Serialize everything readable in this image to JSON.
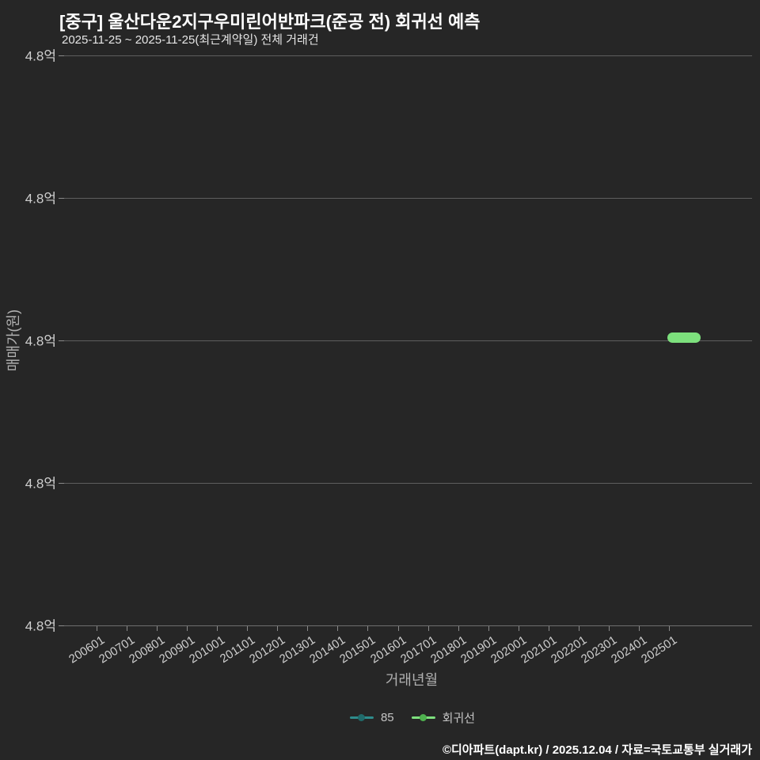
{
  "header": {
    "title": "[중구] 울산다운2지구우미린어반파크(준공 전) 회귀선 예측",
    "subtitle": "2025-11-25 ~ 2025-11-25(최근계약일) 전체 거래건"
  },
  "footer": {
    "credit": "©디아파트(dapt.kr) / 2025.12.04 / 자료=국토교통부 실거래가"
  },
  "colors": {
    "background": "#262626",
    "grid": "#5e5e5e",
    "tick_text": "#cfcfcf",
    "axis_title": "#b0b0b0",
    "title_text": "#ffffff",
    "regression_line": "#7de07d",
    "regression_dot": "#4fb24f",
    "series85_line": "#2e8c8c",
    "series85_dot": "#206a6a",
    "footer_text": "#ffffff"
  },
  "legend": {
    "items": [
      {
        "label": "85",
        "line_color": "#2e8c8c",
        "dot_color": "#206a6a"
      },
      {
        "label": "회귀선",
        "line_color": "#7de07d",
        "dot_color": "#4fb24f"
      }
    ]
  },
  "chart_data": {
    "type": "line",
    "title": "[중구] 울산다운2지구우미린어반파크(준공 전) 회귀선 예측",
    "subtitle": "2025-11-25 ~ 2025-11-25(최근계약일) 전체 거래건",
    "xlabel": "거래년월",
    "ylabel": "매매가(원)",
    "x_tick_labels": [
      "200601",
      "200701",
      "200801",
      "200901",
      "201001",
      "201101",
      "201201",
      "201301",
      "201401",
      "201501",
      "201601",
      "201701",
      "201801",
      "201901",
      "202001",
      "202101",
      "202201",
      "202301",
      "202401",
      "202501"
    ],
    "y_tick_labels": [
      "4.8억",
      "4.8억",
      "4.8억",
      "4.8억",
      "4.8억"
    ],
    "grid": true,
    "legend_position": "bottom",
    "series": [
      {
        "name": "85",
        "type": "scatter",
        "x": [
          "2025-11"
        ],
        "y": [
          "4.8억"
        ]
      },
      {
        "name": "회귀선",
        "type": "line",
        "x": [
          "2025-11",
          "2025-11"
        ],
        "y": [
          "4.8억",
          "4.8억"
        ]
      }
    ]
  }
}
